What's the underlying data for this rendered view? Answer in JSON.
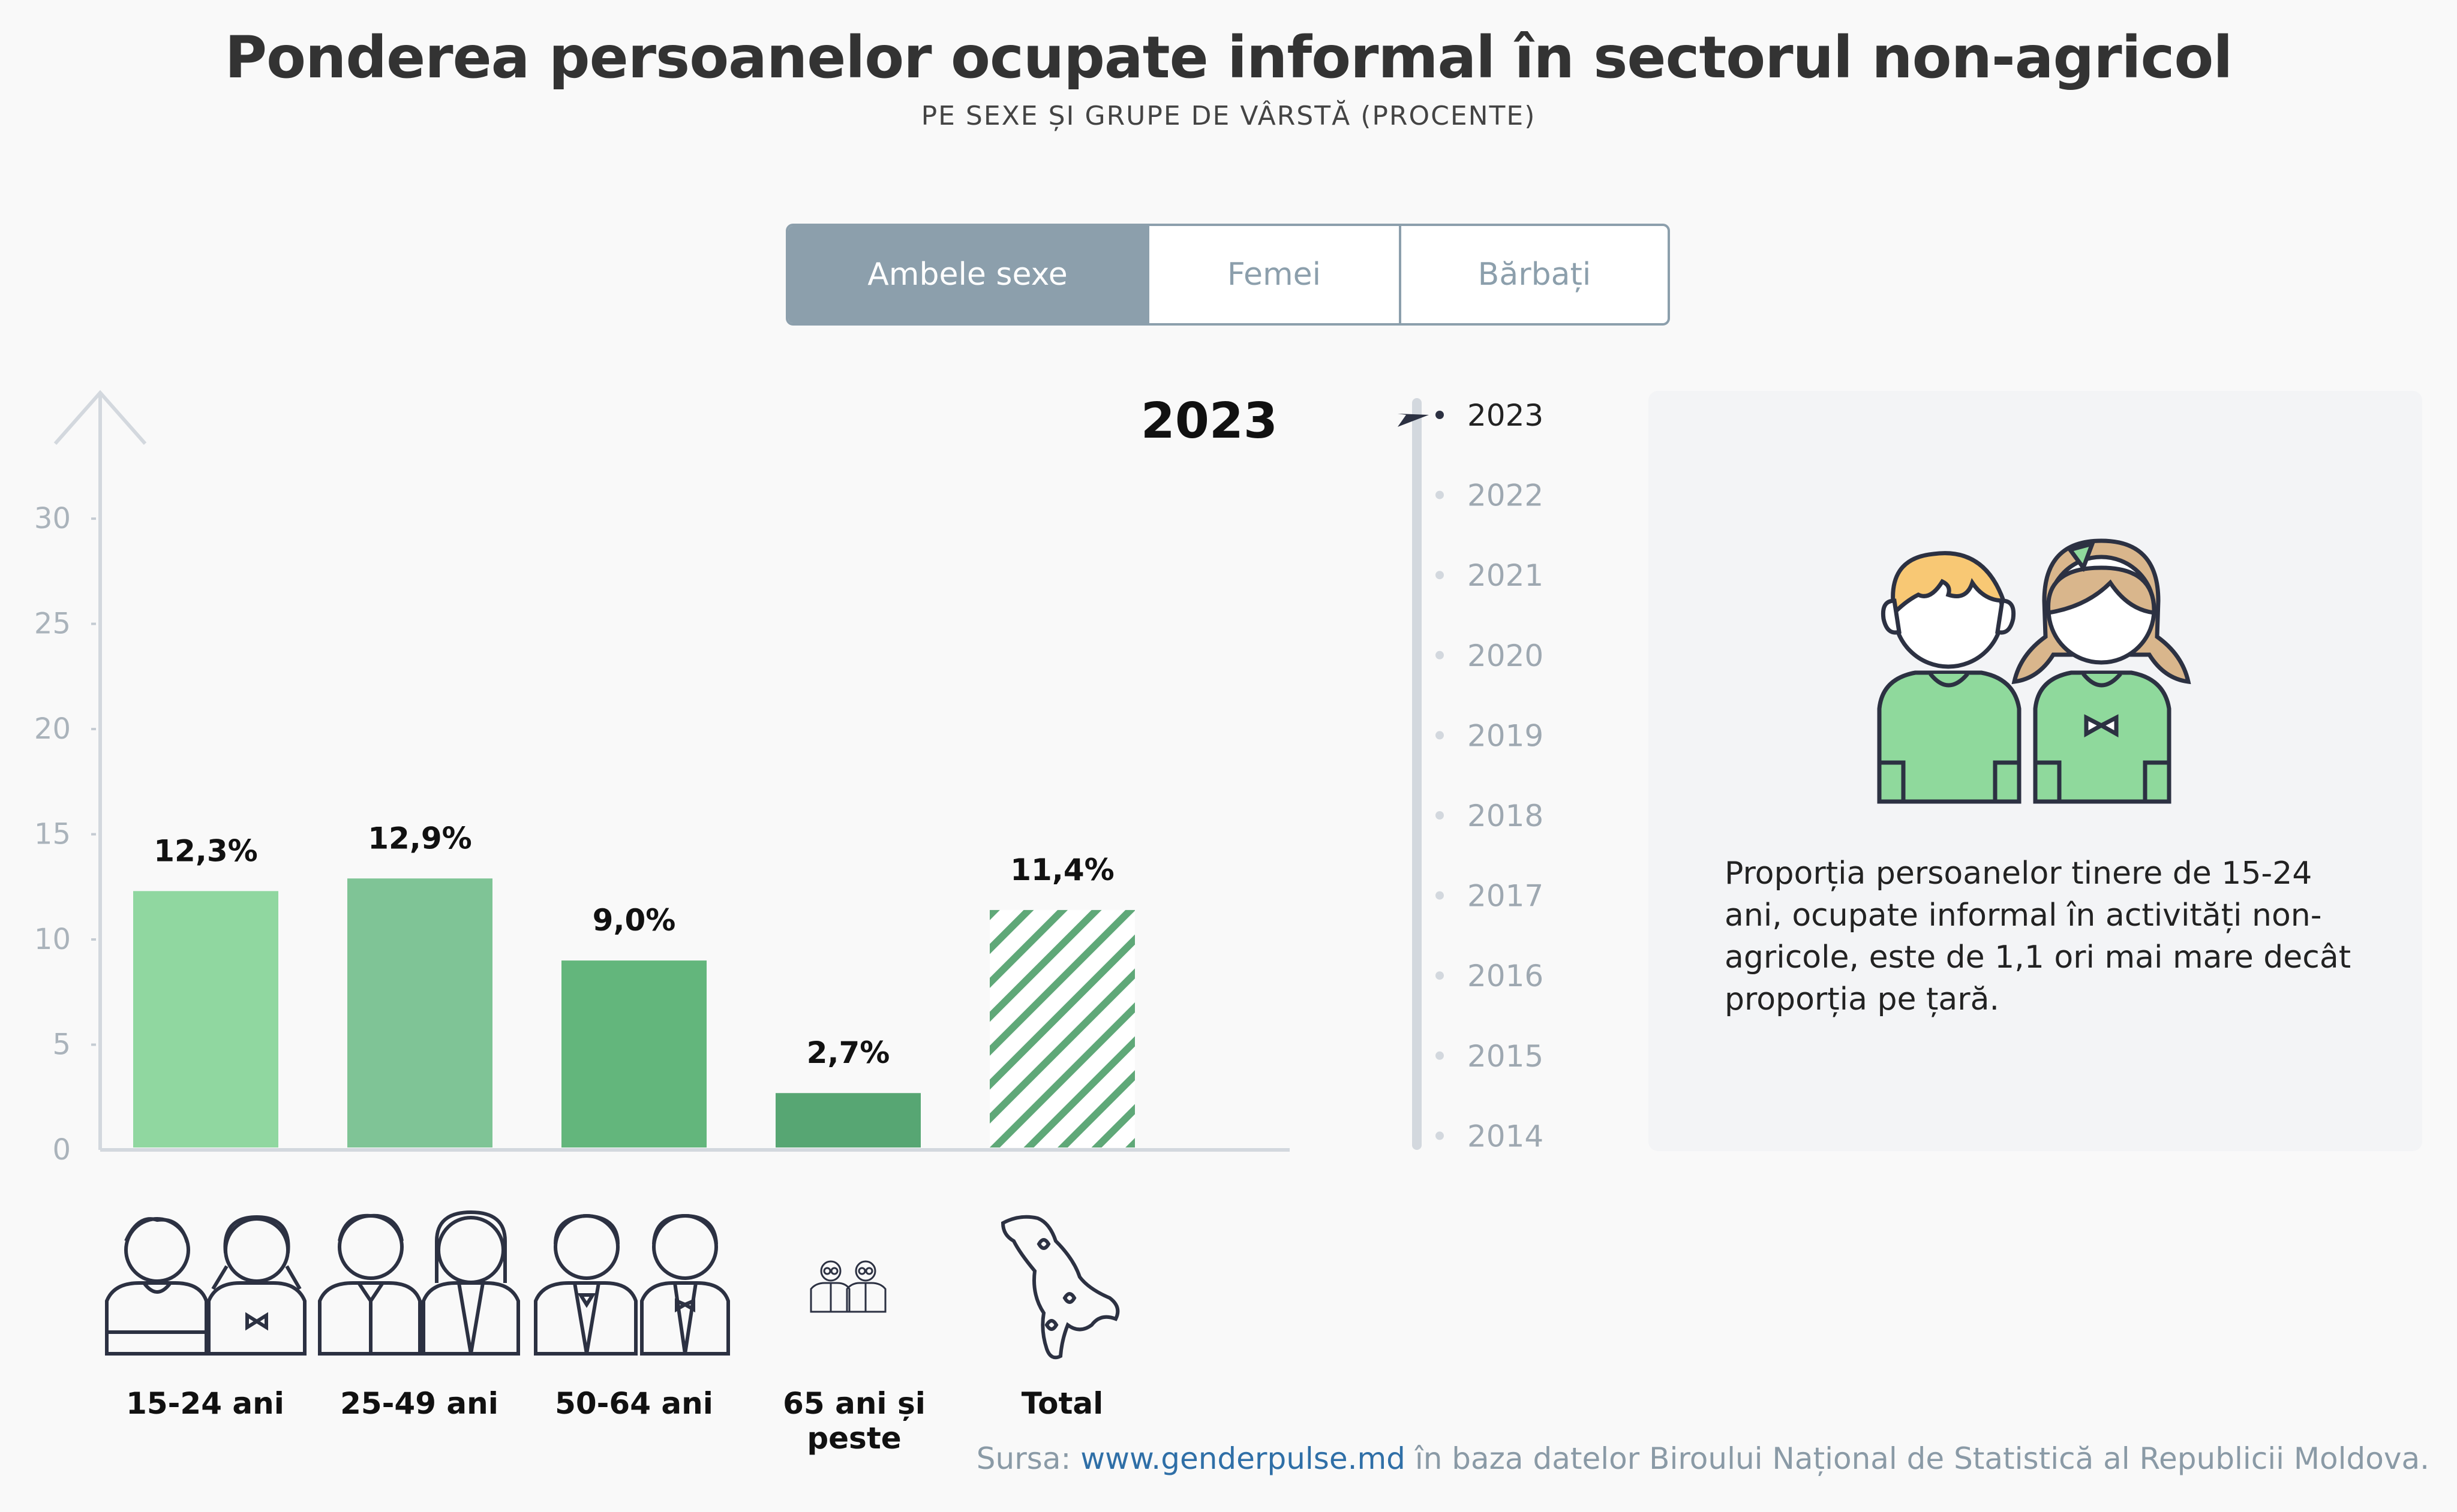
{
  "title": "Ponderea persoanelor ocupate informal în sectorul non-agricol",
  "subtitle": "PE SEXE ȘI GRUPE DE VÂRSTĂ (PROCENTE)",
  "tabs": [
    {
      "label": "Ambele sexe",
      "active": true
    },
    {
      "label": "Femei",
      "active": false
    },
    {
      "label": "Bărbați",
      "active": false
    }
  ],
  "timeline": {
    "selected": "2023",
    "years": [
      "2023",
      "2022",
      "2021",
      "2020",
      "2019",
      "2018",
      "2017",
      "2016",
      "2015",
      "2014"
    ]
  },
  "chart_data": {
    "type": "bar",
    "year_label": "2023",
    "categories": [
      "15-24 ani",
      "25-49 ani",
      "50-64 ani",
      "65 ani și peste",
      "Total"
    ],
    "values": [
      12.3,
      12.9,
      9.0,
      2.7,
      11.4
    ],
    "value_labels": [
      "12,3%",
      "12,9%",
      "9,0%",
      "2,7%",
      "11,4%"
    ],
    "yticks": [
      "0",
      "5",
      "10",
      "15",
      "20",
      "25",
      "30"
    ],
    "ylim": [
      0,
      31
    ],
    "colors": [
      "#90d7a0",
      "#7fc496",
      "#63b67c",
      "#57a673",
      "#5fa878"
    ],
    "hatched_total": true,
    "grid": false
  },
  "info": {
    "text": "Proporția persoanelor tinere de 15-24 ani, ocupate informal în activități non-agricole, este de 1,1 ori mai mare decât proporția pe țară."
  },
  "source": {
    "prefix": "Sursa:",
    "link": "www.genderpulse.md",
    "suffix": "în baza datelor Biroului Național de Statistică al Republicii Moldova."
  },
  "icons": {
    "axis_arrow": "arrow-up-icon",
    "timeline_pointer": "pointer-arrow-icon",
    "info_illustration": "boy-girl-icon",
    "categories": [
      "youth-pair-icon",
      "adult-pair-icon",
      "middle-age-pair-icon",
      "elderly-pair-icon",
      "moldova-map-icon"
    ]
  }
}
